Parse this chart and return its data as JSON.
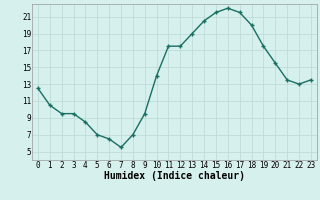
{
  "x": [
    0,
    1,
    2,
    3,
    4,
    5,
    6,
    7,
    8,
    9,
    10,
    11,
    12,
    13,
    14,
    15,
    16,
    17,
    18,
    19,
    20,
    21,
    22,
    23
  ],
  "y": [
    12.5,
    10.5,
    9.5,
    9.5,
    8.5,
    7.0,
    6.5,
    5.5,
    7.0,
    9.5,
    14.0,
    17.5,
    17.5,
    19.0,
    20.5,
    21.5,
    22.0,
    21.5,
    20.0,
    17.5,
    15.5,
    13.5,
    13.0,
    13.5
  ],
  "xlabel": "Humidex (Indice chaleur)",
  "bg_color": "#d6f0ee",
  "grid_color": "#c0dcd8",
  "line_color": "#1a6e62",
  "marker_color": "#1a6e62",
  "xlim": [
    -0.5,
    23.5
  ],
  "ylim": [
    4,
    22.5
  ],
  "yticks": [
    5,
    7,
    9,
    11,
    13,
    15,
    17,
    19,
    21
  ],
  "xticks": [
    0,
    1,
    2,
    3,
    4,
    5,
    6,
    7,
    8,
    9,
    10,
    11,
    12,
    13,
    14,
    15,
    16,
    17,
    18,
    19,
    20,
    21,
    22,
    23
  ],
  "tick_fontsize": 5.5,
  "xlabel_fontsize": 7.0
}
